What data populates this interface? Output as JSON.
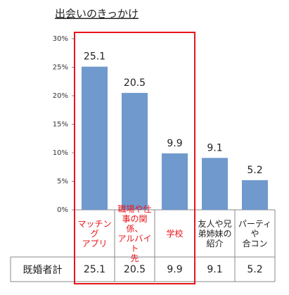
{
  "chart_data": {
    "type": "bar",
    "title": "出会いのきっかけ",
    "categories": [
      "マッチング\nアプリ",
      "職場や仕\n事の関係、\nアルバイト\n先",
      "学校",
      "友人や兄\n弟姉妹の\n紹介",
      "パーティや\n合コン"
    ],
    "category_colors": [
      "#e8141b",
      "#e8141b",
      "#e8141b",
      "#222222",
      "#222222"
    ],
    "series": [
      {
        "name": "既婚者計",
        "color": "#7099cd",
        "values": [
          25.1,
          20.5,
          9.9,
          9.1,
          5.2
        ]
      }
    ],
    "ylim": [
      0,
      30
    ],
    "yticks": [
      {
        "value": 0,
        "label": "0%"
      },
      {
        "value": 5,
        "label": "5%"
      },
      {
        "value": 10,
        "label": "10%"
      },
      {
        "value": 15,
        "label": "15%"
      },
      {
        "value": 20,
        "label": "20%"
      },
      {
        "value": 25,
        "label": "25%"
      },
      {
        "value": 30,
        "label": "30%"
      }
    ]
  }
}
